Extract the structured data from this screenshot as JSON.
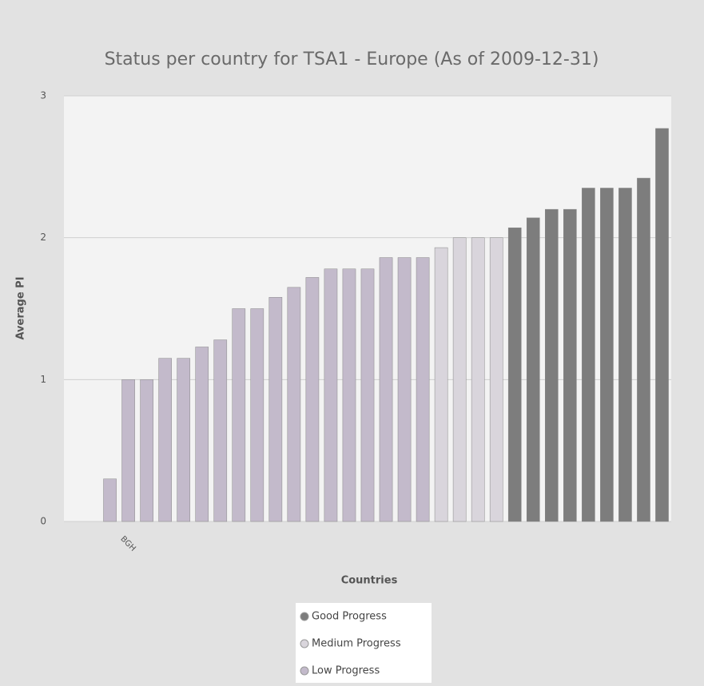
{
  "chart_data": {
    "type": "bar",
    "title": "Status per country for TSA1 - Europe (As of 2009-12-31)",
    "x_label": "Countries",
    "y_label": "Average PI",
    "categories": [
      null,
      null,
      null,
      "BGH",
      null,
      null,
      null,
      null,
      null,
      null,
      null,
      null,
      null,
      null,
      null,
      null,
      null,
      null,
      null,
      null,
      null,
      null,
      null,
      null,
      null,
      null,
      null,
      null,
      null,
      null,
      null,
      null,
      null
    ],
    "series": [
      {
        "name": "Good Progress",
        "color": "#7d7d7d",
        "values": [
          null,
          null,
          null,
          null,
          null,
          null,
          null,
          null,
          null,
          null,
          null,
          null,
          null,
          null,
          null,
          null,
          null,
          null,
          null,
          null,
          null,
          null,
          null,
          null,
          2.07,
          2.14,
          2.2,
          2.2,
          2.35,
          2.35,
          2.35,
          2.42,
          2.77
        ]
      },
      {
        "name": "Medium Progress",
        "color": "#d9d5dc",
        "values": [
          null,
          null,
          null,
          null,
          null,
          null,
          null,
          null,
          null,
          null,
          null,
          null,
          null,
          null,
          null,
          null,
          null,
          null,
          null,
          null,
          1.93,
          2.0,
          2.0,
          2.0,
          null,
          null,
          null,
          null,
          null,
          null,
          null,
          null,
          null
        ]
      },
      {
        "name": "Low Progress",
        "color": "#c3bacb",
        "values": [
          null,
          null,
          0.3,
          1.0,
          1.0,
          1.15,
          1.15,
          1.23,
          1.28,
          1.5,
          1.5,
          1.58,
          1.65,
          1.72,
          1.78,
          1.78,
          1.78,
          1.86,
          1.86,
          1.86,
          null,
          null,
          null,
          null,
          null,
          null,
          null,
          null,
          null,
          null,
          null,
          null,
          null
        ]
      }
    ],
    "ylim": [
      0,
      3
    ],
    "yticks": [
      0,
      1,
      2,
      3
    ],
    "grid": true,
    "legend": "bottom"
  }
}
